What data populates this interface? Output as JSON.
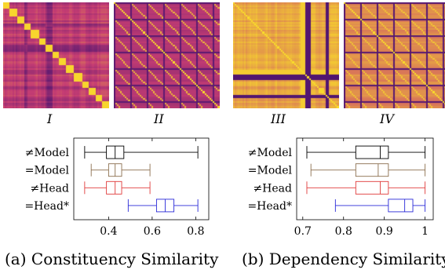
{
  "panels": [
    {
      "caption": "(a)  Constituency Similarity",
      "heatmaps": [
        {
          "label": "I",
          "pattern": "constituency-diagonal"
        },
        {
          "label": "II",
          "pattern": "constituency-grid"
        }
      ]
    },
    {
      "caption": "(b)  Dependency Similarity",
      "heatmaps": [
        {
          "label": "III",
          "pattern": "dependency-diagonal"
        },
        {
          "label": "IV",
          "pattern": "dependency-grid"
        }
      ]
    }
  ],
  "colors": {
    "Model_ne": "#000000",
    "Model_eq": "#8b6e4e",
    "Head_ne": "#e03a3a",
    "Head_eq": "#2a2ad8",
    "heat_low": "#3b0f70",
    "heat_mid": "#c63d73",
    "heat_high": "#fde725"
  },
  "chart_data": [
    {
      "type": "box",
      "categories": [
        "≠Model",
        "=Model",
        "≠Head",
        "=Head*"
      ],
      "ticks": [
        0.4,
        0.6,
        0.8
      ],
      "tick_labels": [
        "0.4",
        "0.6",
        "0.8"
      ],
      "xlim": [
        0.24,
        0.86
      ],
      "boxes": [
        {
          "name": "≠Model",
          "min": 0.29,
          "q1": 0.39,
          "median": 0.43,
          "q3": 0.47,
          "max": 0.81
        },
        {
          "name": "=Model",
          "min": 0.32,
          "q1": 0.4,
          "median": 0.43,
          "q3": 0.46,
          "max": 0.59
        },
        {
          "name": "≠Head",
          "min": 0.29,
          "q1": 0.39,
          "median": 0.43,
          "q3": 0.46,
          "max": 0.59
        },
        {
          "name": "=Head*",
          "min": 0.49,
          "q1": 0.62,
          "median": 0.66,
          "q3": 0.7,
          "max": 0.81
        }
      ]
    },
    {
      "type": "box",
      "categories": [
        "≠Model",
        "=Model",
        "≠Head",
        "=Head*"
      ],
      "ticks": [
        0.7,
        0.8,
        0.9,
        1.0
      ],
      "tick_labels": [
        "0.7",
        "0.8",
        "0.9",
        "1"
      ],
      "xlim": [
        0.685,
        1.02
      ],
      "boxes": [
        {
          "name": "≠Model",
          "min": 0.71,
          "q1": 0.83,
          "median": 0.89,
          "q3": 0.91,
          "max": 1.0
        },
        {
          "name": "=Model",
          "min": 0.72,
          "q1": 0.83,
          "median": 0.885,
          "q3": 0.91,
          "max": 1.0
        },
        {
          "name": "≠Head",
          "min": 0.71,
          "q1": 0.83,
          "median": 0.89,
          "q3": 0.91,
          "max": 1.0
        },
        {
          "name": "=Head*",
          "min": 0.78,
          "q1": 0.91,
          "median": 0.95,
          "q3": 0.97,
          "max": 1.0
        }
      ]
    }
  ]
}
